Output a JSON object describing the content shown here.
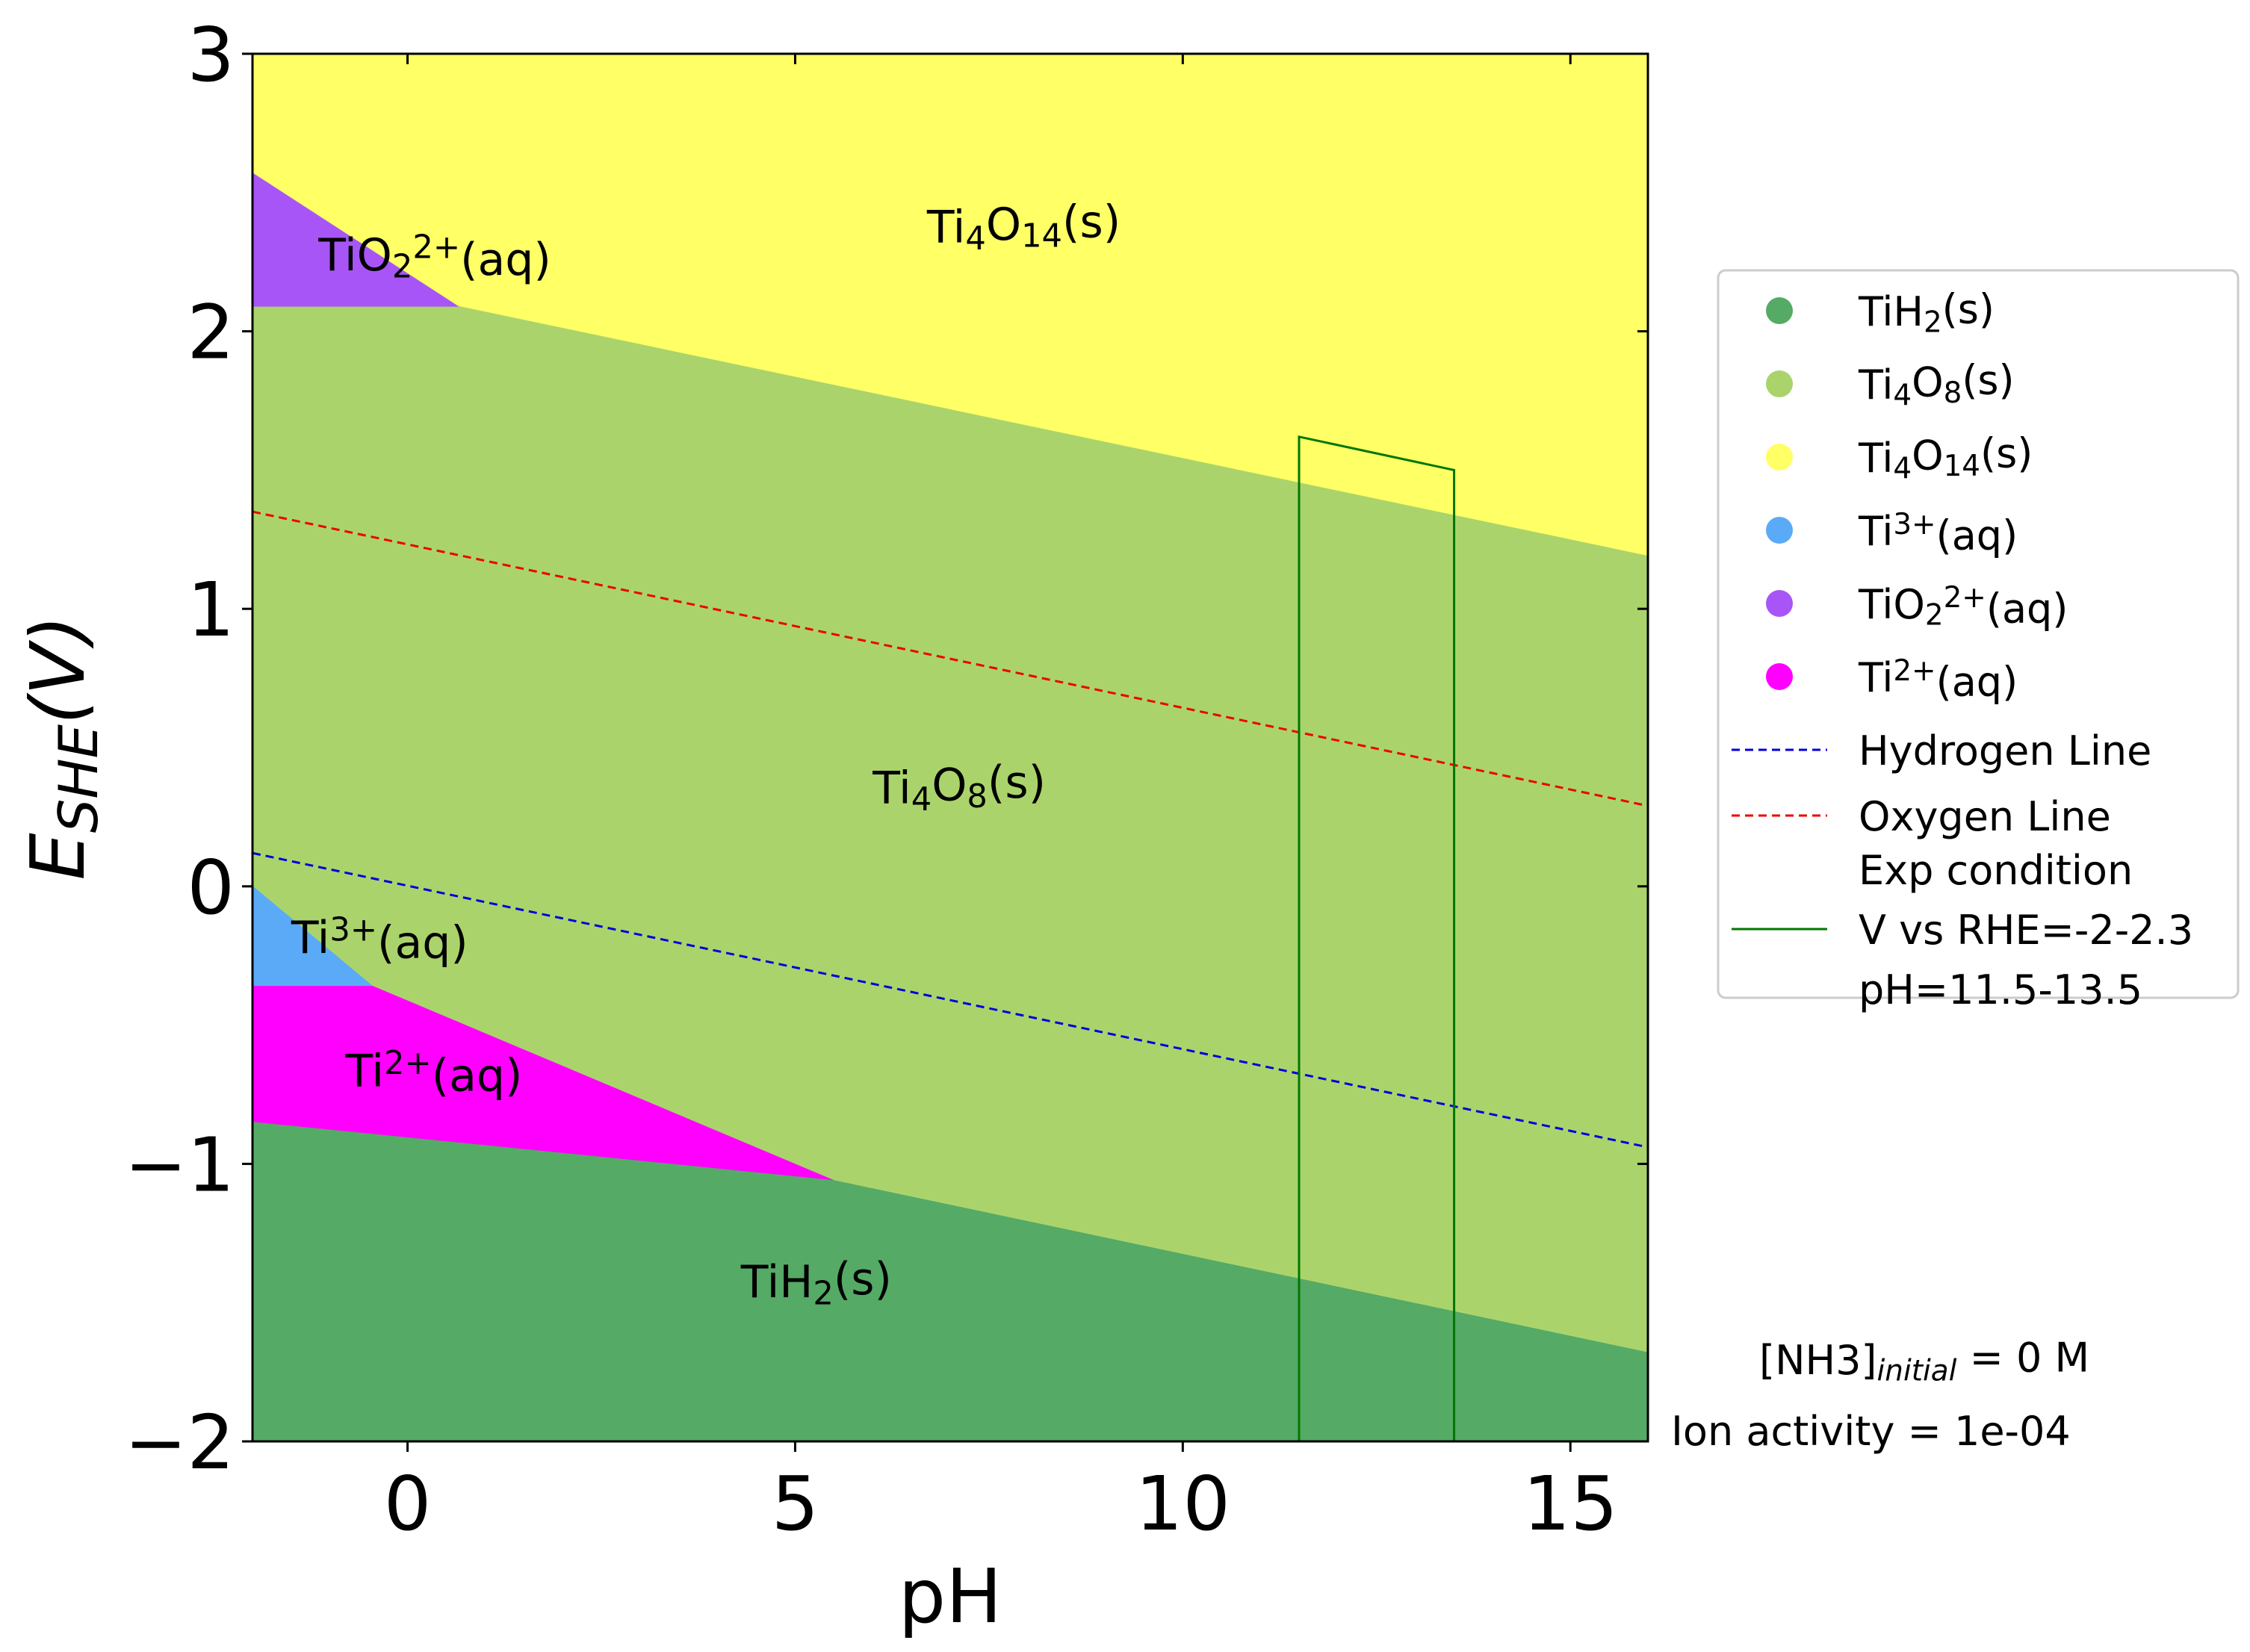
{
  "chart_data": {
    "type": "area",
    "xlabel": "pH",
    "ylabel": {
      "main": "E",
      "sub": "SHE",
      "tail": "(V)"
    },
    "xlim": [
      -2,
      16
    ],
    "ylim": [
      -2,
      3
    ],
    "xticks": [
      0,
      5,
      10,
      15
    ],
    "yticks": [
      -2,
      -1,
      0,
      1,
      2,
      3
    ],
    "xtick_labels": [
      "0",
      "5",
      "10",
      "15"
    ],
    "ytick_labels": [
      "−2",
      "−1",
      "0",
      "1",
      "2",
      "3"
    ],
    "grid": false,
    "legend_position": "right",
    "regions": [
      {
        "id": "ti4o14",
        "color": "#ffff66",
        "polygon": [
          [
            -2,
            3
          ],
          [
            16,
            3
          ],
          [
            16,
            1.19
          ],
          [
            0.65,
            2.09
          ],
          [
            -2,
            2.09
          ]
        ]
      },
      {
        "id": "ti4o8",
        "color": "#aad46b",
        "polygon": [
          [
            -2,
            2.09
          ],
          [
            0.65,
            2.09
          ],
          [
            16,
            1.19
          ],
          [
            16,
            -1.68
          ],
          [
            5.5,
            -1.06
          ],
          [
            -0.45,
            -0.36
          ],
          [
            -2,
            0.0
          ]
        ]
      },
      {
        "id": "tio2",
        "color": "#a855f7",
        "polygon": [
          [
            -2,
            2.57
          ],
          [
            0.65,
            2.09
          ],
          [
            -2,
            2.09
          ]
        ]
      },
      {
        "id": "ti3",
        "color": "#5aaaf7",
        "polygon": [
          [
            -2,
            0.0
          ],
          [
            -0.45,
            -0.36
          ],
          [
            -2,
            -0.36
          ]
        ]
      },
      {
        "id": "ti2",
        "color": "#ff00ff",
        "polygon": [
          [
            -2,
            -0.36
          ],
          [
            -0.45,
            -0.36
          ],
          [
            5.5,
            -1.06
          ],
          [
            -2,
            -0.85
          ]
        ]
      },
      {
        "id": "tih2",
        "color": "#55aa66",
        "polygon": [
          [
            -2,
            -0.85
          ],
          [
            5.5,
            -1.06
          ],
          [
            16,
            -1.68
          ],
          [
            16,
            -2
          ],
          [
            -2,
            -2
          ]
        ]
      }
    ],
    "region_labels": [
      {
        "sym": "Ti",
        "parts": [
          [
            "Ti",
            ""
          ],
          [
            "4",
            "sub"
          ],
          [
            "O",
            ""
          ],
          [
            "14",
            "sub"
          ],
          [
            "(s)",
            ""
          ]
        ],
        "x": 6.7,
        "y": 2.32
      },
      {
        "parts": [
          [
            "TiO",
            ""
          ],
          [
            "2",
            "sub"
          ],
          [
            "2+",
            "sup"
          ],
          [
            "(aq)",
            ""
          ]
        ],
        "x": -1.15,
        "y": 2.22
      },
      {
        "parts": [
          [
            "Ti",
            ""
          ],
          [
            "4",
            "sub"
          ],
          [
            "O",
            ""
          ],
          [
            "8",
            "sub"
          ],
          [
            "(s)",
            ""
          ]
        ],
        "x": 6.0,
        "y": 0.3
      },
      {
        "parts": [
          [
            "Ti",
            ""
          ],
          [
            "3+",
            "sup"
          ],
          [
            "(aq)",
            ""
          ]
        ],
        "x": -1.5,
        "y": -0.24
      },
      {
        "parts": [
          [
            "Ti",
            ""
          ],
          [
            "2+",
            "sup"
          ],
          [
            "(aq)",
            ""
          ]
        ],
        "x": -0.8,
        "y": -0.72
      },
      {
        "parts": [
          [
            "TiH",
            ""
          ],
          [
            "2",
            "sub"
          ],
          [
            "(s)",
            ""
          ]
        ],
        "x": 4.3,
        "y": -1.48
      }
    ],
    "series": [
      {
        "name": "Hydrogen Line",
        "style": "dashed",
        "color": "#0000dd",
        "x": [
          -2,
          16
        ],
        "y": [
          0.12,
          -0.94
        ]
      },
      {
        "name": "Oxygen Line",
        "style": "dashed",
        "color": "#ee0000",
        "x": [
          -2,
          16
        ],
        "y": [
          1.35,
          0.29
        ]
      },
      {
        "name": "Exp condition\nV vs RHE=-2-2.3\npH=11.5-13.5",
        "style": "solid",
        "color": "#007700",
        "x": [
          11.5,
          11.5,
          13.5,
          13.5
        ],
        "y": [
          -2,
          1.62,
          1.5,
          -2
        ]
      }
    ],
    "legend": [
      {
        "kind": "dot",
        "color": "#55aa66",
        "parts": [
          [
            "TiH",
            ""
          ],
          [
            "2",
            "sub"
          ],
          [
            "(s)",
            ""
          ]
        ]
      },
      {
        "kind": "dot",
        "color": "#aad46b",
        "parts": [
          [
            "Ti",
            ""
          ],
          [
            "4",
            "sub"
          ],
          [
            "O",
            ""
          ],
          [
            "8",
            "sub"
          ],
          [
            "(s)",
            ""
          ]
        ]
      },
      {
        "kind": "dot",
        "color": "#ffff66",
        "parts": [
          [
            "Ti",
            ""
          ],
          [
            "4",
            "sub"
          ],
          [
            "O",
            ""
          ],
          [
            "14",
            "sub"
          ],
          [
            "(s)",
            ""
          ]
        ]
      },
      {
        "kind": "dot",
        "color": "#5aaaf7",
        "parts": [
          [
            "Ti",
            ""
          ],
          [
            "3+",
            "sup"
          ],
          [
            "(aq)",
            ""
          ]
        ]
      },
      {
        "kind": "dot",
        "color": "#a855f7",
        "parts": [
          [
            "TiO",
            ""
          ],
          [
            "2",
            "sub"
          ],
          [
            "2+",
            "sup"
          ],
          [
            "(aq)",
            ""
          ]
        ]
      },
      {
        "kind": "dot",
        "color": "#ff00ff",
        "parts": [
          [
            "Ti",
            ""
          ],
          [
            "2+",
            "sup"
          ],
          [
            "(aq)",
            ""
          ]
        ]
      },
      {
        "kind": "dash",
        "color": "#0000dd",
        "parts": [
          [
            "Hydrogen Line",
            ""
          ]
        ]
      },
      {
        "kind": "dash",
        "color": "#ee0000",
        "parts": [
          [
            "Oxygen Line",
            ""
          ]
        ]
      },
      {
        "kind": "line",
        "color": "#007700",
        "lines": [
          "Exp condition",
          "V vs RHE=-2-2.3",
          "pH=11.5-13.5"
        ]
      }
    ],
    "annotations": [
      {
        "parts": [
          [
            "[NH3]",
            ""
          ],
          [
            "initial",
            "subitalic"
          ],
          [
            " = 0 M",
            ""
          ]
        ]
      },
      {
        "parts": [
          [
            "Ion activity = 1e-04",
            ""
          ]
        ]
      }
    ]
  }
}
